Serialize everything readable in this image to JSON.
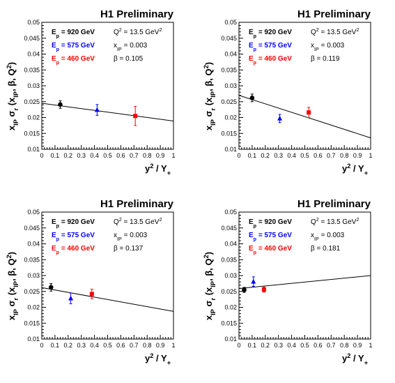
{
  "chart_data": [
    {
      "type": "scatter",
      "title": "H1 Preliminary",
      "xlabel": "y² / Y₊",
      "ylabel": "x_IP σ_r (x_IP, β, Q²)",
      "xlim": [
        0,
        1
      ],
      "ylim": [
        0.01,
        0.05
      ],
      "x_ticks": [
        "0",
        "0.1",
        "0.2",
        "0.3",
        "0.4",
        "0.5",
        "0.6",
        "0.7",
        "0.8",
        "0.9",
        "1"
      ],
      "y_ticks": [
        "0.01",
        "0.015",
        "0.02",
        "0.025",
        "0.03",
        "0.035",
        "0.04",
        "0.045",
        "0.05"
      ],
      "annotations": {
        "ep920": "E_p = 920 GeV",
        "ep575": "E_p = 575 GeV",
        "ep460": "E_p = 460 GeV",
        "q2": "Q² = 13.5 GeV²",
        "xip": "x_IP = 0.003",
        "beta": "β   = 0.105"
      },
      "series": [
        {
          "name": "E_p = 920 GeV",
          "color": "#000000",
          "marker": "circle",
          "x": [
            0.14
          ],
          "y": [
            0.0241
          ],
          "err": [
            0.0012
          ]
        },
        {
          "name": "E_p = 575 GeV",
          "color": "#0000ff",
          "marker": "triangle",
          "x": [
            0.42
          ],
          "y": [
            0.0224
          ],
          "err": [
            0.0017
          ]
        },
        {
          "name": "E_p = 460 GeV",
          "color": "#ff0000",
          "marker": "square",
          "x": [
            0.71
          ],
          "y": [
            0.0205
          ],
          "err": [
            0.003
          ]
        }
      ],
      "fit_line": {
        "x": [
          0,
          1
        ],
        "y": [
          0.0245,
          0.0189
        ]
      }
    },
    {
      "type": "scatter",
      "title": "H1 Preliminary",
      "xlabel": "y² / Y₊",
      "ylabel": "x_IP σ_r (x_IP, β, Q²)",
      "xlim": [
        0,
        1
      ],
      "ylim": [
        0.01,
        0.05
      ],
      "x_ticks": [
        "0",
        "0.1",
        "0.2",
        "0.3",
        "0.4",
        "0.5",
        "0.6",
        "0.7",
        "0.8",
        "0.9",
        "1"
      ],
      "y_ticks": [
        "0.01",
        "0.015",
        "0.02",
        "0.025",
        "0.03",
        "0.035",
        "0.04",
        "0.045",
        "0.05"
      ],
      "annotations": {
        "ep920": "E_p = 920 GeV",
        "ep575": "E_p = 575 GeV",
        "ep460": "E_p = 460 GeV",
        "q2": "Q² = 13.5 GeV²",
        "xip": "x_IP = 0.003",
        "beta": "β   = 0.119"
      },
      "series": [
        {
          "name": "E_p = 920 GeV",
          "color": "#000000",
          "marker": "circle",
          "x": [
            0.1
          ],
          "y": [
            0.0262
          ],
          "err": [
            0.0012
          ]
        },
        {
          "name": "E_p = 575 GeV",
          "color": "#0000ff",
          "marker": "triangle",
          "x": [
            0.31
          ],
          "y": [
            0.0197
          ],
          "err": [
            0.0013
          ]
        },
        {
          "name": "E_p = 460 GeV",
          "color": "#ff0000",
          "marker": "square",
          "x": [
            0.53
          ],
          "y": [
            0.0216
          ],
          "err": [
            0.0016
          ]
        }
      ],
      "fit_line": {
        "x": [
          0,
          1
        ],
        "y": [
          0.027,
          0.0136
        ]
      }
    },
    {
      "type": "scatter",
      "title": "H1 Preliminary",
      "xlabel": "y² / Y₊",
      "ylabel": "x_IP σ_r (x_IP, β, Q²)",
      "xlim": [
        0,
        1
      ],
      "ylim": [
        0.01,
        0.05
      ],
      "x_ticks": [
        "0",
        "0.1",
        "0.2",
        "0.3",
        "0.4",
        "0.5",
        "0.6",
        "0.7",
        "0.8",
        "0.9",
        "1"
      ],
      "y_ticks": [
        "0.01",
        "0.015",
        "0.02",
        "0.025",
        "0.03",
        "0.035",
        "0.04",
        "0.045",
        "0.05"
      ],
      "annotations": {
        "ep920": "E_p = 920 GeV",
        "ep575": "E_p = 575 GeV",
        "ep460": "E_p = 460 GeV",
        "q2": "Q² = 13.5 GeV²",
        "xip": "x_IP = 0.003",
        "beta": "β   = 0.137"
      },
      "series": [
        {
          "name": "E_p = 920 GeV",
          "color": "#000000",
          "marker": "circle",
          "x": [
            0.07
          ],
          "y": [
            0.0263
          ],
          "err": [
            0.0012
          ]
        },
        {
          "name": "E_p = 575 GeV",
          "color": "#0000ff",
          "marker": "triangle",
          "x": [
            0.22
          ],
          "y": [
            0.0228
          ],
          "err": [
            0.0017
          ]
        },
        {
          "name": "E_p = 460 GeV",
          "color": "#ff0000",
          "marker": "square",
          "x": [
            0.38
          ],
          "y": [
            0.0242
          ],
          "err": [
            0.0015
          ]
        }
      ],
      "fit_line": {
        "x": [
          0,
          1
        ],
        "y": [
          0.0262,
          0.0187
        ]
      }
    },
    {
      "type": "scatter",
      "title": "H1 Preliminary",
      "xlabel": "y² / Y₊",
      "ylabel": "x_IP σ_r (x_IP, β, Q²)",
      "xlim": [
        0,
        1
      ],
      "ylim": [
        0.01,
        0.05
      ],
      "x_ticks": [
        "0",
        "0.1",
        "0.2",
        "0.3",
        "0.4",
        "0.5",
        "0.6",
        "0.7",
        "0.8",
        "0.9",
        "1"
      ],
      "y_ticks": [
        "0.01",
        "0.015",
        "0.02",
        "0.025",
        "0.03",
        "0.035",
        "0.04",
        "0.045",
        "0.05"
      ],
      "annotations": {
        "ep920": "E_p = 920 GeV",
        "ep575": "E_p = 575 GeV",
        "ep460": "E_p = 460 GeV",
        "q2": "Q² = 13.5 GeV²",
        "xip": "x_IP = 0.003",
        "beta": "β   = 0.181"
      },
      "series": [
        {
          "name": "E_p = 920 GeV",
          "color": "#000000",
          "marker": "circle",
          "x": [
            0.04
          ],
          "y": [
            0.0255
          ],
          "err": [
            0.0008
          ]
        },
        {
          "name": "E_p = 575 GeV",
          "color": "#0000ff",
          "marker": "triangle",
          "x": [
            0.11
          ],
          "y": [
            0.0281
          ],
          "err": [
            0.0015
          ]
        },
        {
          "name": "E_p = 460 GeV",
          "color": "#ff0000",
          "marker": "square",
          "x": [
            0.19
          ],
          "y": [
            0.0256
          ],
          "err": [
            0.0008
          ]
        }
      ],
      "fit_line": {
        "x": [
          0,
          1
        ],
        "y": [
          0.0259,
          0.03
        ]
      }
    }
  ]
}
